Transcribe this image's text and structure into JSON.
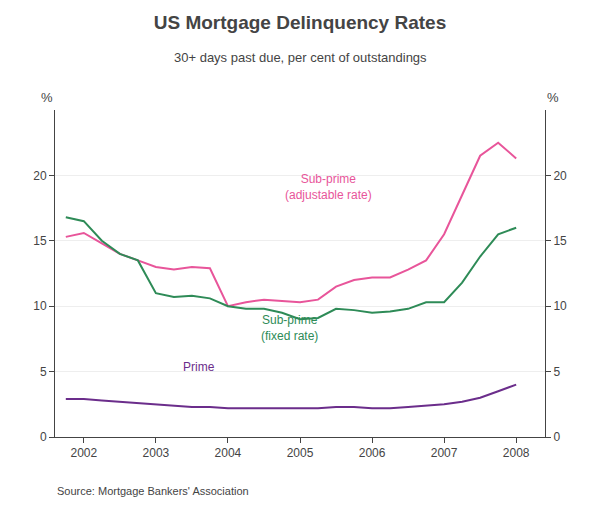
{
  "chart_data": {
    "type": "line",
    "title": "US Mortgage Delinquency Rates",
    "subtitle": "30+ days past due, per cent of outstandings",
    "source": "Source: Mortgage Bankers' Association",
    "y_label": "%",
    "y2_label": "%",
    "x": [
      2001.75,
      2002.0,
      2002.25,
      2002.5,
      2002.75,
      2003.0,
      2003.25,
      2003.5,
      2003.75,
      2004.0,
      2004.25,
      2004.5,
      2004.75,
      2005.0,
      2005.25,
      2005.5,
      2005.75,
      2006.0,
      2006.25,
      2006.5,
      2006.75,
      2007.0,
      2007.25,
      2007.5,
      2007.75,
      2008.0
    ],
    "series": [
      {
        "color": "#E8559A",
        "values": [
          15.3,
          15.6,
          14.8,
          14.0,
          13.5,
          13.0,
          12.8,
          13.0,
          12.9,
          10.0,
          10.3,
          10.5,
          10.4,
          10.3,
          10.5,
          11.5,
          12.0,
          12.2,
          12.2,
          12.8,
          13.5,
          15.5,
          18.5,
          21.5,
          22.5,
          21.3
        ]
      },
      {
        "color": "#2E8B57",
        "values": [
          16.8,
          16.5,
          15.0,
          14.0,
          13.5,
          11.0,
          10.7,
          10.8,
          10.6,
          10.0,
          9.8,
          9.8,
          9.5,
          9.0,
          9.1,
          9.8,
          9.7,
          9.5,
          9.6,
          9.8,
          10.3,
          10.3,
          11.8,
          13.8,
          15.5,
          16.0
        ]
      },
      {
        "color": "#6B2D8B",
        "values": [
          2.9,
          2.9,
          2.8,
          2.7,
          2.6,
          2.5,
          2.4,
          2.3,
          2.3,
          2.2,
          2.2,
          2.2,
          2.2,
          2.2,
          2.2,
          2.3,
          2.3,
          2.2,
          2.2,
          2.3,
          2.4,
          2.5,
          2.7,
          3.0,
          3.5,
          4.0
        ]
      }
    ],
    "annotations": [
      {
        "text": "Sub-prime\n(adjustable rate)",
        "x": 2005.4,
        "y": 17.8,
        "color": "#E8559A"
      },
      {
        "text": "Sub-prime\n(fixed rate)",
        "x": 2004.85,
        "y": 7.0,
        "color": "#2E8B57"
      },
      {
        "text": "Prime",
        "x": 2003.6,
        "y": 4.7,
        "color": "#6B2D8B"
      }
    ],
    "xlim": [
      2001.6,
      2008.4
    ],
    "xticks": [
      2002,
      2003,
      2004,
      2005,
      2006,
      2007,
      2008
    ],
    "ylim": [
      0,
      25
    ],
    "yticks": [
      0,
      5,
      10,
      15,
      20
    ],
    "y2lim": [
      0,
      25
    ],
    "y2ticks": [
      0,
      5,
      10,
      15,
      20
    ],
    "grid": "y"
  }
}
